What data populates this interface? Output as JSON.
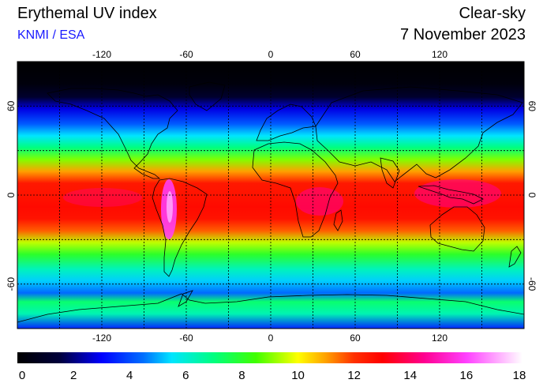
{
  "header": {
    "title": "Erythemal UV index",
    "source": "KNMI / ESA",
    "mode": "Clear-sky",
    "date": "7 November 2023"
  },
  "map": {
    "projection": "equirectangular",
    "lon_range": [
      -180,
      180
    ],
    "lat_range": [
      -90,
      90
    ],
    "lon_ticks": [
      "-120",
      "-60",
      "0",
      "60",
      "120"
    ],
    "lon_tick_values": [
      -120,
      -60,
      0,
      60,
      120
    ],
    "lat_ticks": [
      "60",
      "0",
      "-60"
    ],
    "lat_tick_values": [
      60,
      0,
      -60
    ],
    "grid_lons": [
      -150,
      -120,
      -90,
      -60,
      -30,
      0,
      30,
      60,
      90,
      120,
      150
    ],
    "grid_lats": [
      -60,
      -30,
      0,
      30,
      60
    ],
    "grid_style": "dashed",
    "uv_profile_by_latitude": [
      {
        "lat": 90,
        "uv": 0
      },
      {
        "lat": 75,
        "uv": 0.3
      },
      {
        "lat": 66,
        "uv": 1.2
      },
      {
        "lat": 58,
        "uv": 2.8
      },
      {
        "lat": 48,
        "uv": 4.2
      },
      {
        "lat": 40,
        "uv": 5.5
      },
      {
        "lat": 32,
        "uv": 7.0
      },
      {
        "lat": 24,
        "uv": 9.0
      },
      {
        "lat": 16,
        "uv": 11.0
      },
      {
        "lat": 8,
        "uv": 12.5
      },
      {
        "lat": 0,
        "uv": 12.6
      },
      {
        "lat": -8,
        "uv": 12.8
      },
      {
        "lat": -16,
        "uv": 12.6
      },
      {
        "lat": -24,
        "uv": 11.6
      },
      {
        "lat": -32,
        "uv": 9.5
      },
      {
        "lat": -40,
        "uv": 8.0
      },
      {
        "lat": -50,
        "uv": 6.3
      },
      {
        "lat": -58,
        "uv": 5.3
      },
      {
        "lat": -66,
        "uv": 4.4
      },
      {
        "lat": -72,
        "uv": 7.2
      },
      {
        "lat": -80,
        "uv": 6.4
      },
      {
        "lat": -90,
        "uv": 3.5
      }
    ]
  },
  "colorbar": {
    "ticks": [
      "0",
      "2",
      "4",
      "6",
      "8",
      "10",
      "12",
      "14",
      "16",
      "18"
    ],
    "tick_values": [
      0,
      2,
      4,
      6,
      8,
      10,
      12,
      14,
      16,
      18
    ],
    "min": 0,
    "max": 18,
    "color_stops": [
      {
        "v": 0,
        "c": "#000000"
      },
      {
        "v": 1.5,
        "c": "#00003a"
      },
      {
        "v": 3,
        "c": "#0000ff"
      },
      {
        "v": 4.5,
        "c": "#0070ff"
      },
      {
        "v": 5.5,
        "c": "#00e5ff"
      },
      {
        "v": 7,
        "c": "#00ff7f"
      },
      {
        "v": 8.5,
        "c": "#40ff00"
      },
      {
        "v": 10,
        "c": "#ffff00"
      },
      {
        "v": 11,
        "c": "#ffa000"
      },
      {
        "v": 12,
        "c": "#ff3000"
      },
      {
        "v": 13,
        "c": "#ff0000"
      },
      {
        "v": 14.5,
        "c": "#ff0090"
      },
      {
        "v": 16,
        "c": "#ff40ff"
      },
      {
        "v": 18,
        "c": "#ffffff"
      }
    ]
  }
}
